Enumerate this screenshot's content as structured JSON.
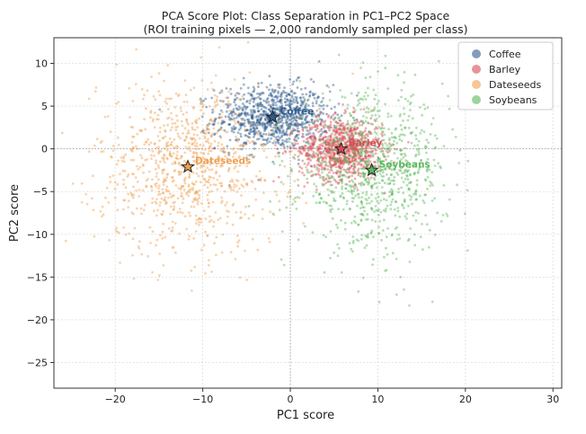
{
  "chart_data": {
    "type": "scatter",
    "title": "PCA Score Plot: Class Separation in PC1–PC2 Space",
    "subtitle": "(ROI training pixels — 2,000 randomly sampled per class)",
    "xlabel": "PC1 score",
    "ylabel": "PC2 score",
    "xlim": [
      -27,
      31
    ],
    "ylim": [
      -28,
      13
    ],
    "xticks": [
      -20,
      -10,
      0,
      10,
      20,
      30
    ],
    "yticks": [
      10,
      5,
      0,
      -5,
      -10,
      -15,
      -20,
      -25
    ],
    "xtick_labels": [
      "−20",
      "−10",
      "0",
      "10",
      "20",
      "30"
    ],
    "ytick_labels": [
      "10",
      "5",
      "0",
      "−5",
      "−10",
      "−15",
      "−20",
      "−25"
    ],
    "grid": true,
    "reference_lines": {
      "x": 0,
      "y": 0
    },
    "legend_position": "top-right",
    "points_per_class": 2000,
    "series": [
      {
        "name": "Coffee",
        "color": "#2f5a8c",
        "centroid": [
          -2,
          3.7
        ],
        "spread": [
          3.2,
          1.9
        ],
        "centroid_label": "Coffee"
      },
      {
        "name": "Barley",
        "color": "#d94b55",
        "centroid": [
          5.8,
          0.0
        ],
        "spread": [
          2.4,
          1.8
        ],
        "centroid_label": "Barley"
      },
      {
        "name": "Dateseeds",
        "color": "#f0a050",
        "centroid": [
          -11.7,
          -2.1
        ],
        "spread": [
          5.2,
          5.0
        ],
        "centroid_label": "Dateseeds"
      },
      {
        "name": "Soybeans",
        "color": "#5cb85c",
        "centroid": [
          9.3,
          -2.5
        ],
        "spread": [
          4.2,
          4.5
        ],
        "centroid_label": "Soybeans"
      }
    ]
  }
}
